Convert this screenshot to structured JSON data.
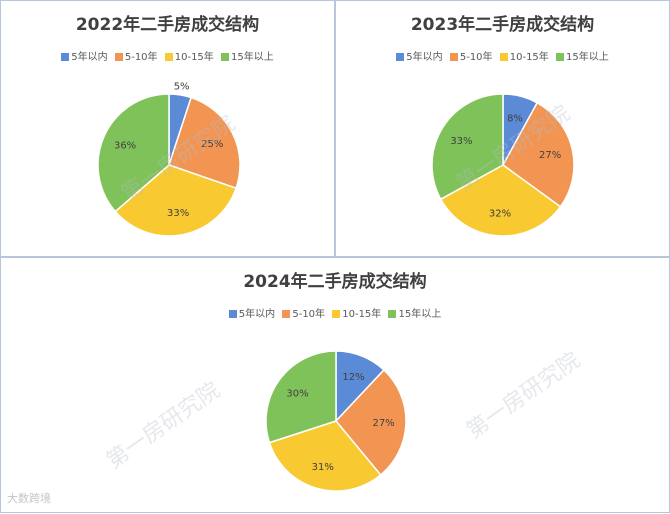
{
  "categories": [
    "5年以内",
    "5-10年",
    "10-15年",
    "15年以上"
  ],
  "colors": [
    "#5b8bd6",
    "#f29553",
    "#f8c931",
    "#7fc25a"
  ],
  "watermark": "第一房研究院",
  "logo_text": "大数跨境",
  "chart_data": [
    {
      "type": "pie",
      "title": "2022年二手房成交结构",
      "categories": [
        "5年以内",
        "5-10年",
        "10-15年",
        "15年以上"
      ],
      "values": [
        5,
        25,
        33,
        36
      ],
      "labels": [
        "5%",
        "25%",
        "33%",
        "36%"
      ],
      "legend": "top"
    },
    {
      "type": "pie",
      "title": "2023年二手房成交结构",
      "categories": [
        "5年以内",
        "5-10年",
        "10-15年",
        "15年以上"
      ],
      "values": [
        8,
        27,
        32,
        33
      ],
      "labels": [
        "8%",
        "27%",
        "32%",
        "33%"
      ],
      "legend": "top"
    },
    {
      "type": "pie",
      "title": "2024年二手房成交结构",
      "categories": [
        "5年以内",
        "5-10年",
        "10-15年",
        "15年以上"
      ],
      "values": [
        12,
        27,
        31,
        30
      ],
      "labels": [
        "12%",
        "27%",
        "31%",
        "30%"
      ],
      "legend": "top"
    }
  ]
}
